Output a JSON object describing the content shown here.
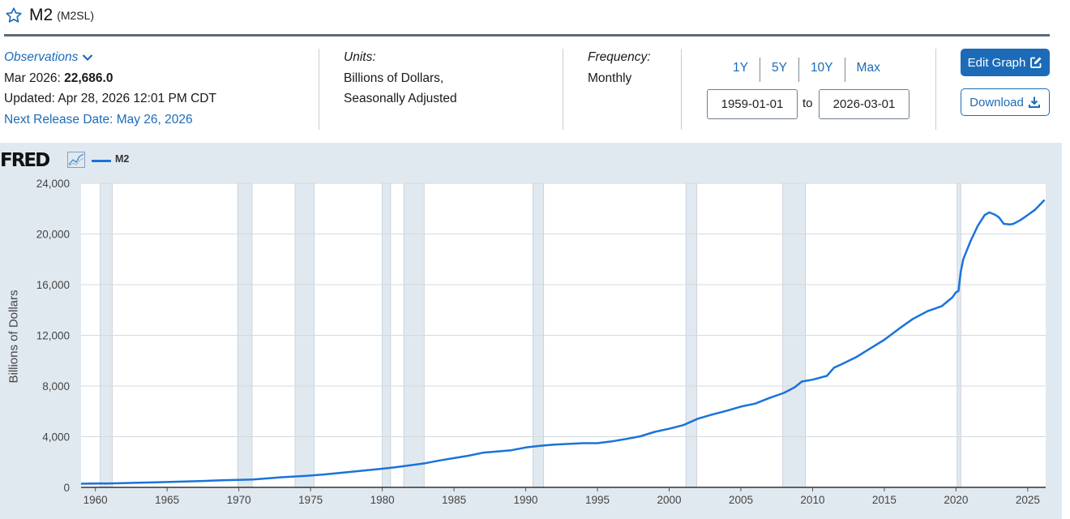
{
  "series": {
    "title": "M2",
    "id": "(M2SL)"
  },
  "observations": {
    "label": "Observations",
    "latest_period": "Mar 2026:",
    "latest_value": "22,686.0",
    "updated": "Updated: Apr 28, 2026 12:01 PM CDT",
    "next_release": "Next Release Date: May 26, 2026"
  },
  "units": {
    "label": "Units:",
    "line1": "Billions of Dollars,",
    "line2": "Seasonally Adjusted"
  },
  "frequency": {
    "label": "Frequency:",
    "value": "Monthly"
  },
  "range_buttons": [
    "1Y",
    "5Y",
    "10Y",
    "Max"
  ],
  "date_range": {
    "start": "1959-01-01",
    "to_label": "to",
    "end": "2026-03-01"
  },
  "actions": {
    "edit_graph": "Edit Graph",
    "download": "Download"
  },
  "colors": {
    "accent": "#1c6bb8",
    "series_line": "#1a73d9",
    "panel_bg": "#e1e9f0",
    "recession": "#e1e9f0"
  },
  "chart_data": {
    "type": "line",
    "logo": "FRED",
    "ylabel": "Billions of Dollars",
    "ylim": [
      0,
      24000
    ],
    "xlim": [
      1959.0,
      2026.25
    ],
    "yticks": [
      0,
      4000,
      8000,
      12000,
      16000,
      20000,
      24000
    ],
    "ytick_labels": [
      "0",
      "4,000",
      "8,000",
      "12,000",
      "16,000",
      "20,000",
      "24,000"
    ],
    "xticks": [
      1960,
      1965,
      1970,
      1975,
      1980,
      1985,
      1990,
      1995,
      2000,
      2005,
      2010,
      2015,
      2020,
      2025
    ],
    "grid": true,
    "legend_position": "top-left",
    "recessions": [
      [
        1960.33,
        1961.17
      ],
      [
        1969.92,
        1970.92
      ],
      [
        1973.92,
        1975.25
      ],
      [
        1980.0,
        1980.58
      ],
      [
        1981.5,
        1982.92
      ],
      [
        1990.5,
        1991.25
      ],
      [
        2001.17,
        2001.92
      ],
      [
        2007.92,
        2009.5
      ],
      [
        2020.08,
        2020.33
      ]
    ],
    "series": [
      {
        "name": "M2",
        "x": [
          1959.0,
          1960.0,
          1961.0,
          1962.0,
          1963.0,
          1964.0,
          1965.0,
          1966.0,
          1967.0,
          1968.0,
          1969.0,
          1970.0,
          1971.0,
          1972.0,
          1973.0,
          1974.0,
          1975.0,
          1976.0,
          1977.0,
          1978.0,
          1979.0,
          1980.0,
          1981.0,
          1982.0,
          1983.0,
          1984.0,
          1985.0,
          1986.0,
          1987.0,
          1988.0,
          1989.0,
          1990.0,
          1991.0,
          1992.0,
          1993.0,
          1994.0,
          1995.0,
          1996.0,
          1997.0,
          1998.0,
          1999.0,
          2000.0,
          2001.0,
          2002.0,
          2003.0,
          2004.0,
          2005.0,
          2006.0,
          2007.0,
          2008.0,
          2008.75,
          2009.25,
          2010.0,
          2011.0,
          2011.5,
          2012.0,
          2013.0,
          2014.0,
          2015.0,
          2016.0,
          2017.0,
          2018.0,
          2019.0,
          2019.75,
          2020.0,
          2020.17,
          2020.33,
          2020.5,
          2020.75,
          2021.0,
          2021.5,
          2022.0,
          2022.33,
          2022.75,
          2023.0,
          2023.33,
          2023.75,
          2024.0,
          2024.5,
          2025.0,
          2025.5,
          2026.17
        ],
        "y": [
          286,
          298,
          312,
          334,
          362,
          390,
          422,
          452,
          485,
          525,
          569,
          588,
          626,
          710,
          803,
          862,
          933,
          1025,
          1142,
          1251,
          1365,
          1473,
          1600,
          1756,
          1906,
          2124,
          2312,
          2495,
          2734,
          2833,
          2934,
          3151,
          3277,
          3379,
          3432,
          3486,
          3485,
          3629,
          3818,
          4030,
          4382,
          4627,
          4914,
          5421,
          5750,
          6039,
          6375,
          6612,
          7061,
          7455,
          7900,
          8350,
          8500,
          8800,
          9450,
          9700,
          10250,
          10950,
          11650,
          12500,
          13300,
          13900,
          14300,
          15000,
          15400,
          15500,
          17000,
          18000,
          18700,
          19400,
          20600,
          21500,
          21700,
          21500,
          21300,
          20800,
          20750,
          20800,
          21100,
          21500,
          21900,
          22686
        ]
      }
    ]
  }
}
